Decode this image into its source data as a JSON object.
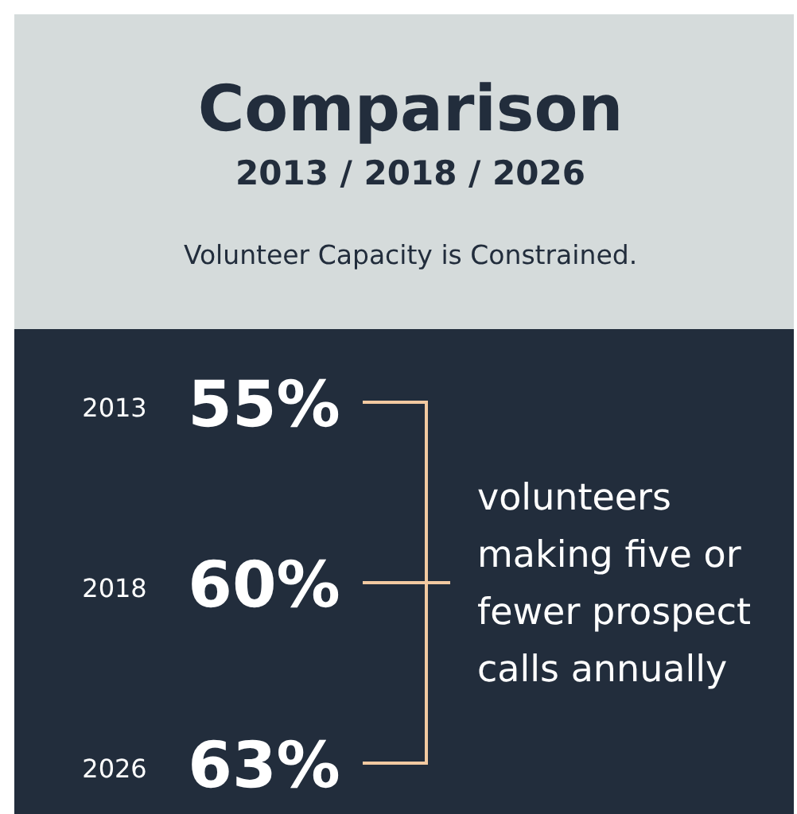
{
  "chart_data": {
    "type": "other",
    "title": "Comparison",
    "subtitle": "2013 / 2018 / 2026",
    "categories": [
      "2013",
      "2018",
      "2026"
    ],
    "values": [
      55,
      60,
      63
    ],
    "value_labels": [
      "55%",
      "60%",
      "63%"
    ],
    "color": "#f2c9a1",
    "annotations": [
      "Volunteer Capacity is Constrained.",
      "volunteers making five or fewer prospect calls annually"
    ]
  }
}
